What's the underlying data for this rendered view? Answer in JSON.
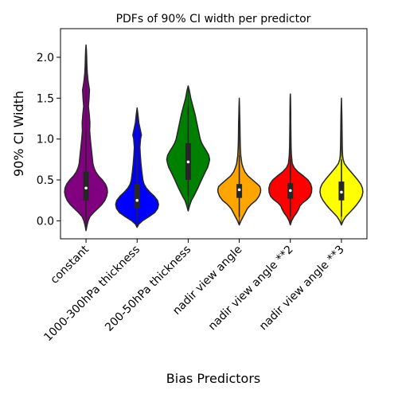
{
  "chart_data": {
    "type": "violin",
    "title": "PDFs of 90% CI width per predictor",
    "xlabel": "Bias Predictors",
    "ylabel": "90% CI Width",
    "ylim": [
      -0.22,
      2.35
    ],
    "yticks": [
      "0.0",
      "0.5",
      "1.0",
      "1.5",
      "2.0"
    ],
    "grid": false,
    "series": [
      {
        "name": "constant",
        "color": "#800080",
        "min": -0.12,
        "max": 2.15,
        "q1": 0.25,
        "median": 0.4,
        "q3": 0.6,
        "whisker_low": 0.0,
        "whisker_high": 1.1,
        "density": [
          [
            -0.12,
            0
          ],
          [
            -0.05,
            0.05
          ],
          [
            0.0,
            0.1
          ],
          [
            0.05,
            0.18
          ],
          [
            0.1,
            0.35
          ],
          [
            0.15,
            0.55
          ],
          [
            0.2,
            0.74
          ],
          [
            0.25,
            0.88
          ],
          [
            0.3,
            0.96
          ],
          [
            0.35,
            1.0
          ],
          [
            0.4,
            0.98
          ],
          [
            0.45,
            0.9
          ],
          [
            0.5,
            0.76
          ],
          [
            0.55,
            0.58
          ],
          [
            0.6,
            0.45
          ],
          [
            0.65,
            0.37
          ],
          [
            0.7,
            0.32
          ],
          [
            0.8,
            0.28
          ],
          [
            0.9,
            0.24
          ],
          [
            1.0,
            0.2
          ],
          [
            1.1,
            0.17
          ],
          [
            1.2,
            0.18
          ],
          [
            1.3,
            0.15
          ],
          [
            1.4,
            0.11
          ],
          [
            1.5,
            0.14
          ],
          [
            1.6,
            0.16
          ],
          [
            1.7,
            0.1
          ],
          [
            1.8,
            0.06
          ],
          [
            1.9,
            0.04
          ],
          [
            2.0,
            0.03
          ],
          [
            2.1,
            0.015
          ],
          [
            2.15,
            0
          ]
        ]
      },
      {
        "name": "1000-300hPa thickness",
        "color": "#0000ff",
        "min": -0.08,
        "max": 1.38,
        "q1": 0.15,
        "median": 0.25,
        "q3": 0.45,
        "whisker_low": 0.0,
        "whisker_high": 0.8,
        "density": [
          [
            -0.08,
            0
          ],
          [
            -0.04,
            0.08
          ],
          [
            0.0,
            0.25
          ],
          [
            0.05,
            0.55
          ],
          [
            0.1,
            0.82
          ],
          [
            0.15,
            0.96
          ],
          [
            0.2,
            1.0
          ],
          [
            0.25,
            0.95
          ],
          [
            0.3,
            0.8
          ],
          [
            0.35,
            0.6
          ],
          [
            0.4,
            0.43
          ],
          [
            0.45,
            0.32
          ],
          [
            0.5,
            0.27
          ],
          [
            0.6,
            0.22
          ],
          [
            0.7,
            0.18
          ],
          [
            0.8,
            0.15
          ],
          [
            0.9,
            0.13
          ],
          [
            1.0,
            0.16
          ],
          [
            1.05,
            0.2
          ],
          [
            1.1,
            0.16
          ],
          [
            1.2,
            0.08
          ],
          [
            1.3,
            0.04
          ],
          [
            1.38,
            0
          ]
        ]
      },
      {
        "name": "200-50hPa thickness",
        "color": "#008000",
        "min": 0.12,
        "max": 1.65,
        "q1": 0.5,
        "median": 0.72,
        "q3": 0.95,
        "whisker_low": 0.3,
        "whisker_high": 1.4,
        "density": [
          [
            0.12,
            0
          ],
          [
            0.18,
            0.06
          ],
          [
            0.25,
            0.15
          ],
          [
            0.3,
            0.26
          ],
          [
            0.4,
            0.45
          ],
          [
            0.5,
            0.62
          ],
          [
            0.6,
            0.8
          ],
          [
            0.65,
            0.9
          ],
          [
            0.7,
            0.96
          ],
          [
            0.75,
            1.0
          ],
          [
            0.8,
            0.96
          ],
          [
            0.85,
            0.86
          ],
          [
            0.9,
            0.74
          ],
          [
            0.95,
            0.63
          ],
          [
            1.0,
            0.56
          ],
          [
            1.1,
            0.48
          ],
          [
            1.2,
            0.4
          ],
          [
            1.3,
            0.32
          ],
          [
            1.4,
            0.22
          ],
          [
            1.5,
            0.12
          ],
          [
            1.6,
            0.05
          ],
          [
            1.65,
            0
          ]
        ]
      },
      {
        "name": "nadir view angle",
        "color": "#ffa500",
        "min": -0.05,
        "max": 1.5,
        "q1": 0.28,
        "median": 0.38,
        "q3": 0.45,
        "whisker_low": 0.05,
        "whisker_high": 0.8,
        "density": [
          [
            -0.05,
            0
          ],
          [
            0.0,
            0.08
          ],
          [
            0.05,
            0.18
          ],
          [
            0.1,
            0.28
          ],
          [
            0.15,
            0.38
          ],
          [
            0.2,
            0.55
          ],
          [
            0.25,
            0.78
          ],
          [
            0.3,
            0.92
          ],
          [
            0.35,
            0.99
          ],
          [
            0.38,
            1.0
          ],
          [
            0.42,
            0.96
          ],
          [
            0.45,
            0.84
          ],
          [
            0.5,
            0.62
          ],
          [
            0.55,
            0.4
          ],
          [
            0.6,
            0.26
          ],
          [
            0.65,
            0.18
          ],
          [
            0.7,
            0.12
          ],
          [
            0.8,
            0.07
          ],
          [
            0.9,
            0.05
          ],
          [
            1.0,
            0.04
          ],
          [
            1.1,
            0.035
          ],
          [
            1.2,
            0.03
          ],
          [
            1.3,
            0.02
          ],
          [
            1.4,
            0.012
          ],
          [
            1.5,
            0
          ]
        ]
      },
      {
        "name": "nadir view angle **2",
        "color": "#ff0000",
        "min": -0.05,
        "max": 1.55,
        "q1": 0.27,
        "median": 0.37,
        "q3": 0.46,
        "whisker_low": 0.05,
        "whisker_high": 0.75,
        "density": [
          [
            -0.05,
            0
          ],
          [
            0.0,
            0.06
          ],
          [
            0.05,
            0.16
          ],
          [
            0.1,
            0.3
          ],
          [
            0.15,
            0.4
          ],
          [
            0.18,
            0.44
          ],
          [
            0.22,
            0.58
          ],
          [
            0.26,
            0.78
          ],
          [
            0.3,
            0.92
          ],
          [
            0.35,
            0.99
          ],
          [
            0.4,
            1.0
          ],
          [
            0.45,
            0.95
          ],
          [
            0.5,
            0.82
          ],
          [
            0.55,
            0.6
          ],
          [
            0.6,
            0.35
          ],
          [
            0.65,
            0.18
          ],
          [
            0.7,
            0.09
          ],
          [
            0.8,
            0.05
          ],
          [
            0.9,
            0.035
          ],
          [
            1.0,
            0.03
          ],
          [
            1.1,
            0.025
          ],
          [
            1.2,
            0.02
          ],
          [
            1.3,
            0.02
          ],
          [
            1.4,
            0.015
          ],
          [
            1.5,
            0.008
          ],
          [
            1.55,
            0
          ]
        ]
      },
      {
        "name": "nadir view angle **3",
        "color": "#ffff00",
        "min": -0.05,
        "max": 1.5,
        "q1": 0.25,
        "median": 0.35,
        "q3": 0.48,
        "whisker_low": 0.05,
        "whisker_high": 0.75,
        "density": [
          [
            -0.05,
            0
          ],
          [
            0.0,
            0.08
          ],
          [
            0.05,
            0.2
          ],
          [
            0.1,
            0.38
          ],
          [
            0.15,
            0.56
          ],
          [
            0.2,
            0.72
          ],
          [
            0.25,
            0.86
          ],
          [
            0.3,
            0.96
          ],
          [
            0.35,
            1.0
          ],
          [
            0.4,
            0.98
          ],
          [
            0.45,
            0.9
          ],
          [
            0.5,
            0.76
          ],
          [
            0.55,
            0.6
          ],
          [
            0.6,
            0.44
          ],
          [
            0.65,
            0.28
          ],
          [
            0.7,
            0.14
          ],
          [
            0.75,
            0.08
          ],
          [
            0.8,
            0.055
          ],
          [
            0.9,
            0.04
          ],
          [
            1.0,
            0.035
          ],
          [
            1.1,
            0.03
          ],
          [
            1.2,
            0.025
          ],
          [
            1.3,
            0.02
          ],
          [
            1.4,
            0.01
          ],
          [
            1.5,
            0
          ]
        ]
      }
    ]
  }
}
